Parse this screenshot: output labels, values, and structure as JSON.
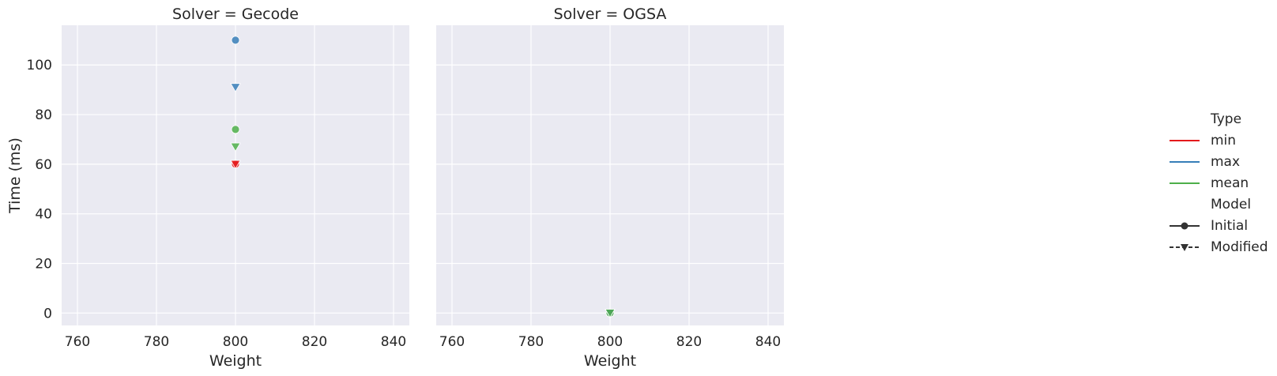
{
  "chart_data": {
    "type": "scatter",
    "y_label": "Time (ms)",
    "x_label": "Weight",
    "x_ticks": [
      760,
      780,
      800,
      820,
      840
    ],
    "y_ticks": [
      0,
      20,
      40,
      60,
      80,
      100
    ],
    "xlim": [
      756,
      844
    ],
    "ylim": [
      -5,
      116
    ],
    "grid": true,
    "legend_placement": "right",
    "panels": [
      {
        "title": "Solver = Gecode",
        "points": [
          {
            "type": "max",
            "model": "Initial",
            "x": 800,
            "y": 110
          },
          {
            "type": "max",
            "model": "Modified",
            "x": 800,
            "y": 91
          },
          {
            "type": "mean",
            "model": "Initial",
            "x": 800,
            "y": 74
          },
          {
            "type": "mean",
            "model": "Modified",
            "x": 800,
            "y": 67
          },
          {
            "type": "min",
            "model": "Initial",
            "x": 800,
            "y": 60
          },
          {
            "type": "min",
            "model": "Modified",
            "x": 800,
            "y": 60
          }
        ]
      },
      {
        "title": "Solver = OGSA",
        "points": [
          {
            "type": "min",
            "model": "Initial",
            "x": 800,
            "y": 0
          },
          {
            "type": "max",
            "model": "Initial",
            "x": 800,
            "y": 0
          },
          {
            "type": "mean",
            "model": "Initial",
            "x": 800,
            "y": 0
          },
          {
            "type": "min",
            "model": "Modified",
            "x": 800,
            "y": 0
          },
          {
            "type": "max",
            "model": "Modified",
            "x": 800,
            "y": 0
          },
          {
            "type": "mean",
            "model": "Modified",
            "x": 800,
            "y": 0
          }
        ]
      }
    ],
    "legend": {
      "type_title": "Type",
      "types": [
        {
          "name": "min",
          "color": "#e41a1c"
        },
        {
          "name": "max",
          "color": "#377eb8"
        },
        {
          "name": "mean",
          "color": "#4daf4a"
        }
      ],
      "model_title": "Model",
      "models": [
        {
          "name": "Initial",
          "marker": "circle",
          "dash": "solid"
        },
        {
          "name": "Modified",
          "marker": "triangle-down",
          "dash": "dashed"
        }
      ]
    },
    "colors": {
      "panel_bg": "#eaeaf2",
      "grid": "#ffffff",
      "text": "#262626",
      "legend_line_dark": "#333333"
    }
  }
}
